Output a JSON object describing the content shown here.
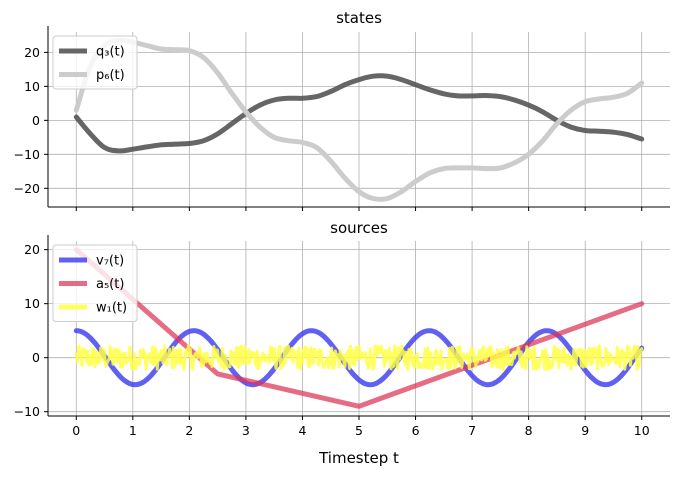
{
  "chart_data": [
    {
      "type": "line",
      "title": "states",
      "xlim": [
        -0.5,
        10.5
      ],
      "ylim": [
        -25.5,
        26
      ],
      "yticks": [
        -20,
        -10,
        0,
        10,
        20
      ],
      "xticks": [
        0,
        1,
        2,
        3,
        4,
        5,
        6,
        7,
        8,
        9,
        10
      ],
      "show_xtick_labels": false,
      "grid": true,
      "legend": "top-left",
      "series": [
        {
          "name": "q₃(t)",
          "color": "#555555",
          "opacity": 0.9,
          "x": [
            0,
            0.25,
            0.5,
            0.75,
            1,
            1.25,
            1.5,
            1.75,
            2,
            2.25,
            2.5,
            2.75,
            3,
            3.25,
            3.5,
            3.75,
            4,
            4.25,
            4.5,
            4.75,
            5,
            5.25,
            5.5,
            5.75,
            6,
            6.25,
            6.5,
            6.75,
            7,
            7.25,
            7.5,
            7.75,
            8,
            8.25,
            8.5,
            8.75,
            9,
            9.25,
            9.5,
            9.75,
            10
          ],
          "y": [
            1,
            -4,
            -8,
            -9,
            -8.5,
            -7.8,
            -7.2,
            -7,
            -6.8,
            -6,
            -4,
            -1,
            2,
            4.5,
            6,
            6.5,
            6.5,
            7,
            8.5,
            10.5,
            12,
            13,
            13,
            12,
            10.5,
            9,
            7.8,
            7.2,
            7.2,
            7.3,
            7,
            6,
            4.5,
            2.5,
            0,
            -2,
            -3,
            -3.2,
            -3.5,
            -4.2,
            -5.5
          ]
        },
        {
          "name": "p₆(t)",
          "color": "#cccccc",
          "opacity": 1,
          "x": [
            0,
            0.25,
            0.5,
            0.75,
            1,
            1.25,
            1.5,
            1.75,
            2,
            2.25,
            2.5,
            2.75,
            3,
            3.25,
            3.5,
            3.75,
            4,
            4.25,
            4.5,
            4.75,
            5,
            5.25,
            5.5,
            5.75,
            6,
            6.25,
            6.5,
            6.75,
            7,
            7.25,
            7.5,
            7.75,
            8,
            8.25,
            8.5,
            8.75,
            9,
            9.25,
            9.5,
            9.75,
            10
          ],
          "y": [
            3,
            16,
            22,
            23.5,
            23,
            22,
            21,
            20.8,
            20.5,
            18.5,
            14,
            8,
            2.5,
            -2,
            -5,
            -6,
            -6.5,
            -8,
            -12,
            -17,
            -21,
            -23,
            -23,
            -21,
            -18,
            -15.5,
            -14.2,
            -14,
            -14,
            -14.2,
            -14,
            -12.5,
            -10,
            -6,
            -1,
            3,
            5.5,
            6.3,
            6.8,
            8,
            11
          ]
        }
      ]
    },
    {
      "type": "line",
      "title": "sources",
      "xlabel": "Timestep t",
      "xlim": [
        -0.5,
        10.5
      ],
      "ylim": [
        -10.8,
        21.6
      ],
      "yticks": [
        -10,
        0,
        10,
        20
      ],
      "xticks": [
        0,
        1,
        2,
        3,
        4,
        5,
        6,
        7,
        8,
        9,
        10
      ],
      "grid": true,
      "legend": "top-left",
      "series": [
        {
          "name": "v₇(t)",
          "kind": "sine",
          "color": "#3333ee",
          "opacity": 0.78,
          "amplitude": 5,
          "period": 2.08,
          "phase_shift": 0
        },
        {
          "name": "a₅(t)",
          "color": "#dd3355",
          "opacity": 0.72,
          "x": [
            0,
            2.5,
            5,
            10
          ],
          "y": [
            20,
            -3,
            -9,
            10
          ]
        },
        {
          "name": "w₁(t)",
          "kind": "noise",
          "color": "#ffff44",
          "opacity": 0.85,
          "noise_amplitude": 2.2
        }
      ]
    }
  ]
}
